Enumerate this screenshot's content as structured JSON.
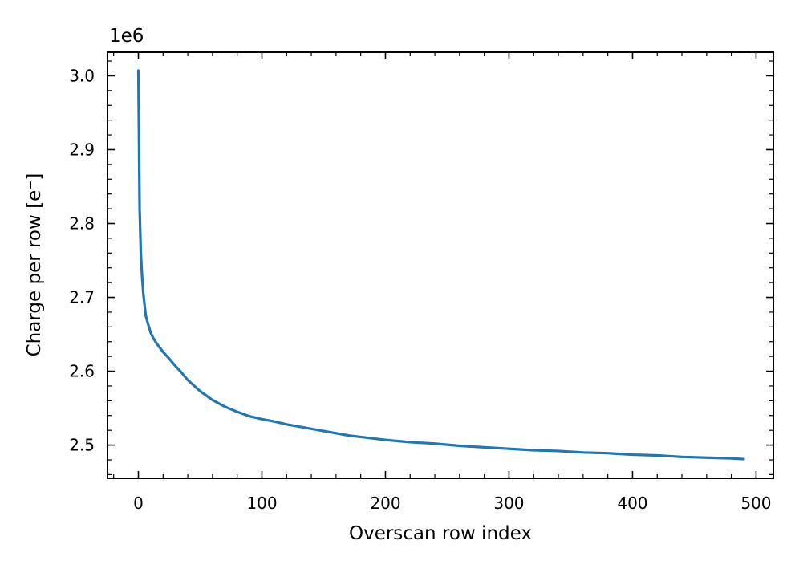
{
  "chart_data": {
    "type": "line",
    "title": "",
    "xlabel": "Overscan row index",
    "ylabel": "Charge per row [e$^-$]",
    "ylabel_display": "Charge per row [e⁻]",
    "y_offset_label": "1e6",
    "xlim": [
      -25,
      514
    ],
    "ylim": [
      2.455,
      3.032
    ],
    "y_scale_factor": 1000000,
    "x_ticks": [
      0,
      100,
      200,
      300,
      400,
      500
    ],
    "x_tick_labels": [
      "0",
      "100",
      "200",
      "300",
      "400",
      "500"
    ],
    "y_ticks": [
      2.5,
      2.6,
      2.7,
      2.8,
      2.9,
      3.0
    ],
    "y_tick_labels": [
      "2.5",
      "2.6",
      "2.7",
      "2.8",
      "2.9",
      "3.0"
    ],
    "grid": false,
    "legend": "none",
    "series": [
      {
        "color": "#1f77b4",
        "x": [
          0,
          1,
          2,
          3,
          4,
          5,
          6,
          8,
          10,
          12,
          15,
          20,
          25,
          30,
          35,
          40,
          50,
          60,
          70,
          80,
          90,
          100,
          110,
          120,
          130,
          140,
          150,
          160,
          170,
          180,
          190,
          200,
          220,
          240,
          260,
          280,
          300,
          320,
          340,
          360,
          380,
          400,
          420,
          440,
          460,
          480,
          490
        ],
        "y": [
          3.007,
          2.82,
          2.76,
          2.728,
          2.705,
          2.69,
          2.675,
          2.663,
          2.652,
          2.645,
          2.637,
          2.626,
          2.617,
          2.607,
          2.598,
          2.588,
          2.573,
          2.561,
          2.552,
          2.545,
          2.539,
          2.535,
          2.532,
          2.528,
          2.525,
          2.522,
          2.519,
          2.516,
          2.513,
          2.511,
          2.509,
          2.507,
          2.504,
          2.502,
          2.499,
          2.497,
          2.495,
          2.493,
          2.492,
          2.49,
          2.489,
          2.487,
          2.486,
          2.484,
          2.483,
          2.482,
          2.481
        ]
      }
    ]
  }
}
